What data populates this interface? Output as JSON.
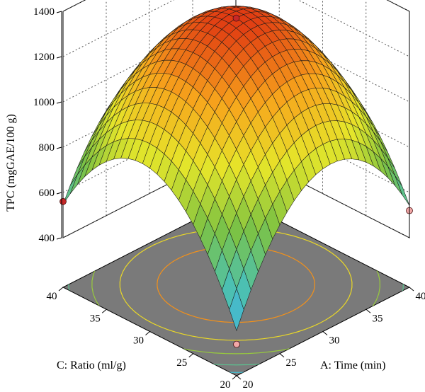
{
  "chart_data": {
    "type": "surface3d",
    "title": "",
    "zlabel": "TPC (mgGAE/100 g)",
    "xlabel": "A: Time (min)",
    "ylabel": "C: Ratio (ml/g)",
    "x_range": [
      20,
      40
    ],
    "y_range": [
      20,
      40
    ],
    "z_range": [
      400,
      1400
    ],
    "x_ticks": [
      "20",
      "25",
      "30",
      "35",
      "40"
    ],
    "y_ticks": [
      "20",
      "25",
      "30",
      "35",
      "40"
    ],
    "z_ticks": [
      "400",
      "600",
      "800",
      "1000",
      "1200",
      "1400"
    ],
    "surface": {
      "model": "quadratic",
      "center": [
        30,
        30
      ],
      "peak": 1370,
      "corners": {
        "x20_y20": 320,
        "x40_y20": 540,
        "x20_y40": 550,
        "x40_y40": 560
      }
    },
    "design_points": [
      {
        "x": 30,
        "y": 30,
        "z": 1370,
        "color": "#c62828"
      },
      {
        "x": 20,
        "y": 40,
        "z": 560,
        "color": "#c62828"
      },
      {
        "x": 40,
        "y": 20,
        "z": 520,
        "color": "#f2a8a8"
      },
      {
        "x": 20,
        "y": 20,
        "z": 320,
        "color": "#f2a8a8"
      }
    ],
    "contour_floor": true,
    "floor_color": "#7a7a7a",
    "colormap": [
      "#3fb0f0",
      "#4cc1b0",
      "#7dc242",
      "#e6e62a",
      "#f7a51c",
      "#e03a12"
    ]
  }
}
